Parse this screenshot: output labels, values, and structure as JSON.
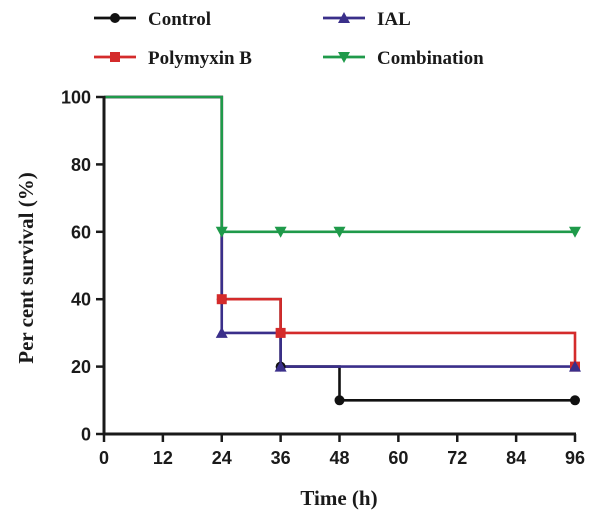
{
  "chart_data": {
    "type": "line",
    "subtype": "step",
    "title": "",
    "xlabel": "Time (h)",
    "ylabel": "Per cent survival (%)",
    "xlim": [
      0,
      96
    ],
    "ylim": [
      0,
      100
    ],
    "xticks": [
      0,
      12,
      24,
      36,
      48,
      60,
      72,
      84,
      96
    ],
    "yticks": [
      0,
      20,
      40,
      60,
      80,
      100
    ],
    "grid": false,
    "legend_position": "top",
    "series": [
      {
        "name": "Control",
        "color": "#111111",
        "marker": "circle",
        "steps": [
          [
            0,
            100
          ],
          [
            24,
            40
          ],
          [
            36,
            20
          ],
          [
            48,
            10
          ],
          [
            96,
            10
          ]
        ],
        "markers": [
          [
            24,
            40
          ],
          [
            36,
            20
          ],
          [
            48,
            10
          ],
          [
            96,
            10
          ]
        ]
      },
      {
        "name": "Polymyxin B",
        "color": "#d42b2b",
        "marker": "square",
        "steps": [
          [
            0,
            100
          ],
          [
            24,
            40
          ],
          [
            36,
            30
          ],
          [
            96,
            20
          ]
        ],
        "markers": [
          [
            24,
            40
          ],
          [
            36,
            30
          ],
          [
            96,
            20
          ]
        ]
      },
      {
        "name": "IAL",
        "color": "#3a2f8a",
        "marker": "triangle-up",
        "steps": [
          [
            0,
            100
          ],
          [
            24,
            30
          ],
          [
            36,
            20
          ],
          [
            96,
            20
          ]
        ],
        "markers": [
          [
            24,
            30
          ],
          [
            36,
            20
          ],
          [
            96,
            20
          ]
        ]
      },
      {
        "name": "Combination",
        "color": "#1f9a4a",
        "marker": "triangle-down",
        "steps": [
          [
            0,
            100
          ],
          [
            24,
            60
          ],
          [
            96,
            60
          ]
        ],
        "markers": [
          [
            24,
            60
          ],
          [
            36,
            60
          ],
          [
            48,
            60
          ],
          [
            96,
            60
          ]
        ]
      }
    ]
  }
}
